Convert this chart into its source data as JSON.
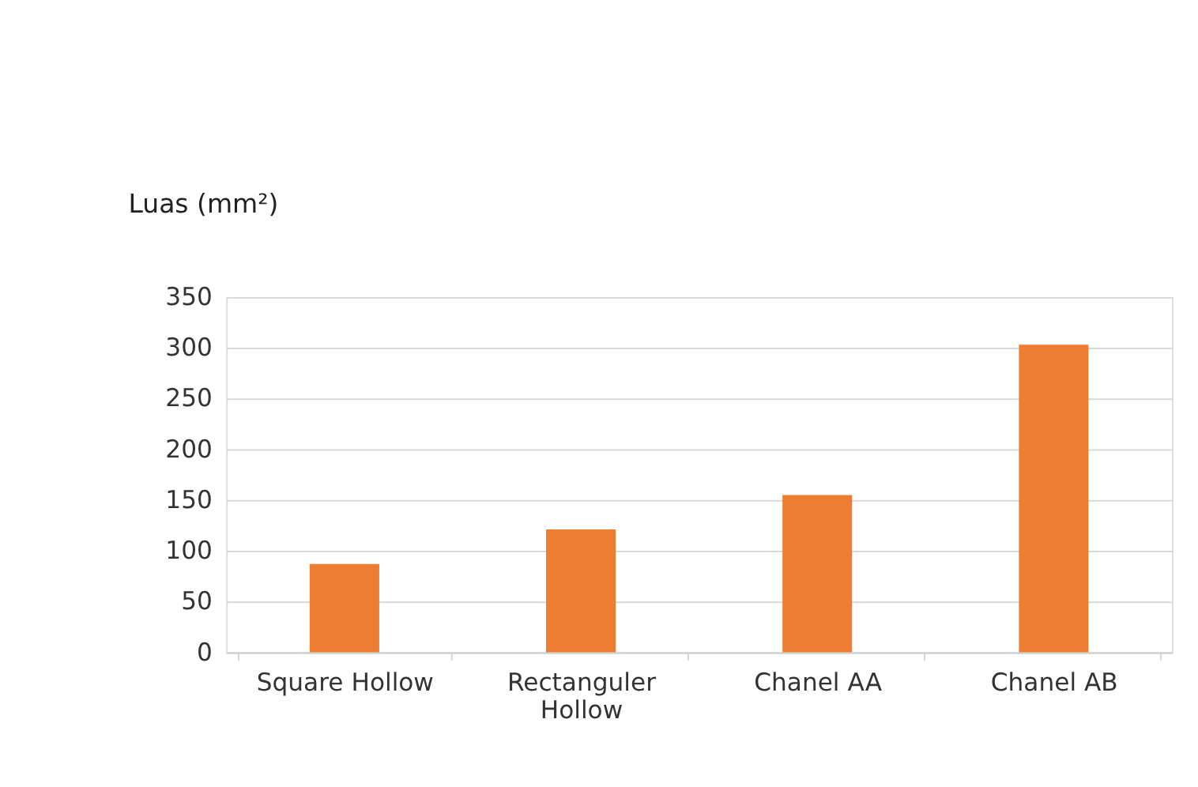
{
  "chart_data": {
    "type": "bar",
    "ylabel": "Luas (mm²)",
    "categories": [
      "Square Hollow",
      "Rectanguler Hollow",
      "Chanel AA",
      "Chanel AB"
    ],
    "values": [
      87,
      121,
      155,
      303
    ],
    "color": "#ed7d31",
    "ylim": [
      0,
      350
    ],
    "yticks": [
      0,
      50,
      100,
      150,
      200,
      250,
      300,
      350
    ],
    "grid": "y"
  }
}
